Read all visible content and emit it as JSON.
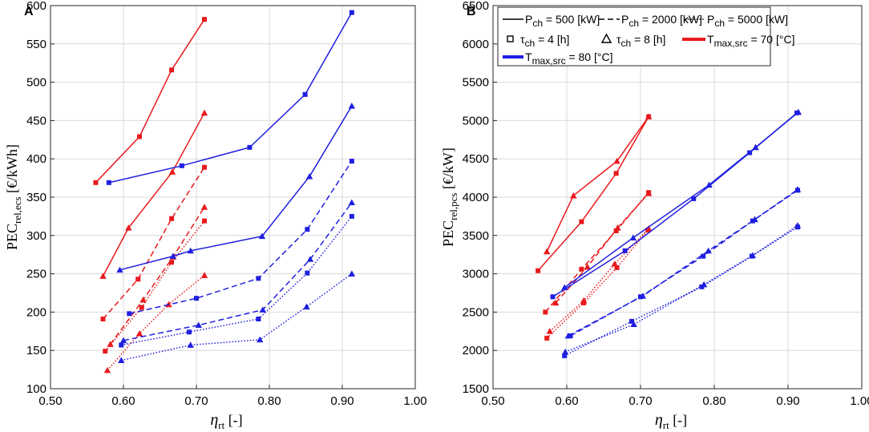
{
  "colors": {
    "red": "#e8191c",
    "blue": "#1f1fe0"
  },
  "chart_data": [
    {
      "type": "line",
      "panel_label": "A",
      "xlabel_main": "η",
      "xlabel_sub": "rt",
      "xlabel_unit": "[-]",
      "ylabel_main": "PEC",
      "ylabel_sub": "rel,ecs",
      "ylabel_unit": "[€/kWh]",
      "xlim": [
        0.5,
        1.0
      ],
      "ylim": [
        100,
        600
      ],
      "xticks": [
        0.5,
        0.6,
        0.7,
        0.8,
        0.9,
        1.0
      ],
      "xtick_labels": [
        "0.50",
        "0.60",
        "0.70",
        "0.80",
        "0.90",
        "1.00"
      ],
      "yticks": [
        100,
        150,
        200,
        250,
        300,
        350,
        400,
        450,
        500,
        550,
        600
      ],
      "ytick_labels": [
        "100",
        "150",
        "200",
        "250",
        "300",
        "350",
        "400",
        "450",
        "500",
        "550",
        "600"
      ],
      "series": [
        {
          "name": "T70 P500 τ4",
          "color": "red",
          "dash": "solid",
          "marker": "square",
          "width": 1.5,
          "x": [
            0.562,
            0.622,
            0.666,
            0.711
          ],
          "y": [
            369,
            429,
            516,
            582
          ]
        },
        {
          "name": "T70 P500 τ8",
          "color": "red",
          "dash": "solid",
          "marker": "triangle",
          "width": 1.5,
          "x": [
            0.572,
            0.607,
            0.667,
            0.711
          ],
          "y": [
            247,
            310,
            383,
            460
          ]
        },
        {
          "name": "T70 P2000 τ4",
          "color": "red",
          "dash": "dashed",
          "marker": "square",
          "width": 1.5,
          "x": [
            0.572,
            0.62,
            0.666,
            0.711
          ],
          "y": [
            191,
            243,
            322,
            389
          ]
        },
        {
          "name": "T70 P2000 τ8",
          "color": "red",
          "dash": "dashed",
          "marker": "triangle",
          "width": 1.5,
          "x": [
            0.582,
            0.627,
            0.668,
            0.711
          ],
          "y": [
            158,
            216,
            272,
            337
          ]
        },
        {
          "name": "T70 P5000 τ4",
          "color": "red",
          "dash": "dotted",
          "marker": "square",
          "width": 1.5,
          "x": [
            0.575,
            0.625,
            0.666,
            0.711
          ],
          "y": [
            149,
            206,
            265,
            319
          ]
        },
        {
          "name": "T70 P5000 τ8",
          "color": "red",
          "dash": "dotted",
          "marker": "triangle",
          "width": 1.5,
          "x": [
            0.578,
            0.622,
            0.662,
            0.711
          ],
          "y": [
            124,
            172,
            210,
            248
          ]
        },
        {
          "name": "T80 P500 τ4",
          "color": "blue",
          "dash": "solid",
          "marker": "square",
          "width": 1.5,
          "x": [
            0.58,
            0.68,
            0.773,
            0.849,
            0.913
          ],
          "y": [
            369,
            391,
            415,
            484,
            591
          ]
        },
        {
          "name": "T80 P500 τ8",
          "color": "blue",
          "dash": "solid",
          "marker": "triangle",
          "width": 1.5,
          "x": [
            0.595,
            0.668,
            0.692,
            0.79,
            0.855,
            0.913
          ],
          "y": [
            255,
            273,
            280,
            299,
            377,
            469
          ]
        },
        {
          "name": "T80 P2000 τ4",
          "color": "blue",
          "dash": "dashed",
          "marker": "square",
          "width": 1.5,
          "x": [
            0.608,
            0.7,
            0.785,
            0.852,
            0.913
          ],
          "y": [
            198,
            218,
            244,
            308,
            397
          ]
        },
        {
          "name": "T80 P2000 τ8",
          "color": "blue",
          "dash": "dashed",
          "marker": "triangle",
          "width": 1.5,
          "x": [
            0.6,
            0.703,
            0.791,
            0.856,
            0.913
          ],
          "y": [
            163,
            183,
            203,
            269,
            343
          ]
        },
        {
          "name": "T80 P5000 τ4",
          "color": "blue",
          "dash": "dotted",
          "marker": "square",
          "width": 1.5,
          "x": [
            0.597,
            0.69,
            0.785,
            0.852,
            0.913
          ],
          "y": [
            157,
            174,
            191,
            251,
            325
          ]
        },
        {
          "name": "T80 P5000 τ8",
          "color": "blue",
          "dash": "dotted",
          "marker": "triangle",
          "width": 1.5,
          "x": [
            0.597,
            0.692,
            0.787,
            0.851,
            0.913
          ],
          "y": [
            137,
            157,
            164,
            207,
            250
          ]
        }
      ]
    },
    {
      "type": "line",
      "panel_label": "B",
      "xlabel_main": "η",
      "xlabel_sub": "rt",
      "xlabel_unit": "[-]",
      "ylabel_main": "PEC",
      "ylabel_sub": "rel,pcs",
      "ylabel_unit": "[€/kW]",
      "xlim": [
        0.5,
        1.0
      ],
      "ylim": [
        1500,
        6500
      ],
      "xticks": [
        0.5,
        0.6,
        0.7,
        0.8,
        0.9,
        1.0
      ],
      "xtick_labels": [
        "0.50",
        "0.60",
        "0.70",
        "0.80",
        "0.90",
        "1.00"
      ],
      "yticks": [
        1500,
        2000,
        2500,
        3000,
        3500,
        4000,
        4500,
        5000,
        5500,
        6000,
        6500
      ],
      "ytick_labels": [
        "1500",
        "2000",
        "2500",
        "3000",
        "3500",
        "4000",
        "4500",
        "5000",
        "5500",
        "6000",
        "6500"
      ],
      "legend": {
        "row1": [
          {
            "style": "solid",
            "main": "P",
            "sub": "ch",
            "rest": " = 500 [kW]"
          },
          {
            "style": "dashed",
            "main": "P",
            "sub": "ch",
            "rest": " = 2000 [kW]"
          },
          {
            "style": "dotted",
            "main": "P",
            "sub": "ch",
            "rest": " = 5000 [kW]"
          }
        ],
        "row2": [
          {
            "marker": "square",
            "main": "τ",
            "sub": "ch",
            "rest": " = 4 [h]"
          },
          {
            "marker": "triangle",
            "main": "τ",
            "sub": "ch",
            "rest": " = 8 [h]"
          },
          {
            "color": "red",
            "main": "T",
            "sub": "max,src",
            "rest": " = 70 [°C]"
          }
        ],
        "row3": [
          {
            "color": "blue",
            "main": "T",
            "sub": "max,src",
            "rest": " = 80 [°C]"
          }
        ]
      },
      "series": [
        {
          "name": "T70 P500 τ4",
          "color": "red",
          "dash": "solid",
          "marker": "square",
          "width": 1.5,
          "x": [
            0.561,
            0.62,
            0.667,
            0.711
          ],
          "y": [
            3040,
            3680,
            4310,
            5050
          ]
        },
        {
          "name": "T70 P500 τ8",
          "color": "red",
          "dash": "solid",
          "marker": "triangle",
          "width": 1.5,
          "x": [
            0.573,
            0.609,
            0.668,
            0.711
          ],
          "y": [
            3290,
            4020,
            4470,
            5050
          ]
        },
        {
          "name": "T70 P2000 τ4",
          "color": "red",
          "dash": "dashed",
          "marker": "square",
          "width": 1.5,
          "x": [
            0.571,
            0.62,
            0.667,
            0.711
          ],
          "y": [
            2500,
            3060,
            3560,
            4060
          ]
        },
        {
          "name": "T70 P2000 τ8",
          "color": "red",
          "dash": "dashed",
          "marker": "triangle",
          "width": 1.5,
          "x": [
            0.585,
            0.628,
            0.669,
            0.711
          ],
          "y": [
            2620,
            3090,
            3600,
            4050
          ]
        },
        {
          "name": "T70 P5000 τ4",
          "color": "red",
          "dash": "dotted",
          "marker": "square",
          "width": 1.5,
          "x": [
            0.573,
            0.623,
            0.668,
            0.71
          ],
          "y": [
            2160,
            2620,
            3080,
            3570
          ]
        },
        {
          "name": "T70 P5000 τ8",
          "color": "red",
          "dash": "dotted",
          "marker": "triangle",
          "width": 1.5,
          "x": [
            0.577,
            0.623,
            0.665,
            0.711
          ],
          "y": [
            2250,
            2650,
            3130,
            3590
          ]
        },
        {
          "name": "T80 P500 τ4",
          "color": "blue",
          "dash": "solid",
          "marker": "square",
          "width": 1.5,
          "x": [
            0.581,
            0.679,
            0.772,
            0.848,
            0.912
          ],
          "y": [
            2700,
            3300,
            3980,
            4580,
            5100
          ]
        },
        {
          "name": "T80 P500 τ8",
          "color": "blue",
          "dash": "solid",
          "marker": "triangle",
          "width": 1.5,
          "x": [
            0.597,
            0.69,
            0.793,
            0.856,
            0.914
          ],
          "y": [
            2820,
            3470,
            4160,
            4650,
            5110
          ]
        },
        {
          "name": "T80 P2000 τ4",
          "color": "blue",
          "dash": "dashed",
          "marker": "square",
          "width": 1.5,
          "x": [
            0.605,
            0.7,
            0.785,
            0.852,
            0.913
          ],
          "y": [
            2190,
            2700,
            3230,
            3690,
            4090
          ]
        },
        {
          "name": "T80 P2000 τ8",
          "color": "blue",
          "dash": "dashed",
          "marker": "triangle",
          "width": 1.5,
          "x": [
            0.602,
            0.703,
            0.792,
            0.855,
            0.913
          ],
          "y": [
            2190,
            2710,
            3300,
            3710,
            4100
          ]
        },
        {
          "name": "T80 P5000 τ4",
          "color": "blue",
          "dash": "dotted",
          "marker": "square",
          "width": 1.5,
          "x": [
            0.597,
            0.688,
            0.783,
            0.851,
            0.913
          ],
          "y": [
            1930,
            2380,
            2830,
            3230,
            3610
          ]
        },
        {
          "name": "T80 P5000 τ8",
          "color": "blue",
          "dash": "dotted",
          "marker": "triangle",
          "width": 1.5,
          "x": [
            0.598,
            0.691,
            0.786,
            0.852,
            0.913
          ],
          "y": [
            1980,
            2340,
            2860,
            3240,
            3630
          ]
        }
      ]
    }
  ]
}
